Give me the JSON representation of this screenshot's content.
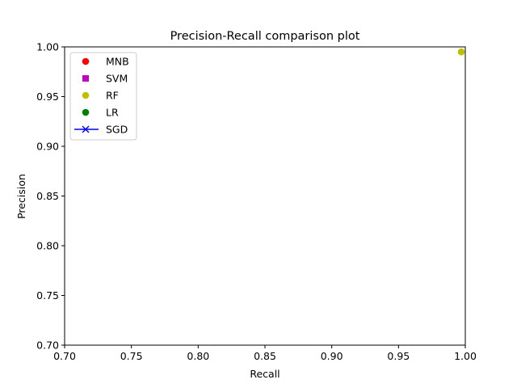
{
  "chart_data": {
    "type": "scatter",
    "title": "Precision-Recall comparison plot",
    "xlabel": "Recall",
    "ylabel": "Precision",
    "xlim": [
      0.7,
      1.0
    ],
    "ylim": [
      0.7,
      1.0
    ],
    "xticks": [
      "0.70",
      "0.75",
      "0.80",
      "0.85",
      "0.90",
      "0.95",
      "1.00"
    ],
    "yticks": [
      "0.70",
      "0.75",
      "0.80",
      "0.85",
      "0.90",
      "0.95",
      "1.00"
    ],
    "grid": false,
    "legend_position": "top-left",
    "series": [
      {
        "name": "MNB",
        "marker": "circle",
        "color": "#ff0000",
        "line": false,
        "points": []
      },
      {
        "name": "SVM",
        "marker": "square",
        "color": "#bf00bf",
        "line": false,
        "points": []
      },
      {
        "name": "RF",
        "marker": "circle",
        "color": "#bfbf00",
        "line": false,
        "points": [
          {
            "x": 0.997,
            "y": 0.995
          }
        ]
      },
      {
        "name": "LR",
        "marker": "circle",
        "color": "#008000",
        "line": false,
        "points": []
      },
      {
        "name": "SGD",
        "marker": "x",
        "color": "#0000ff",
        "line": true,
        "points": []
      }
    ]
  }
}
